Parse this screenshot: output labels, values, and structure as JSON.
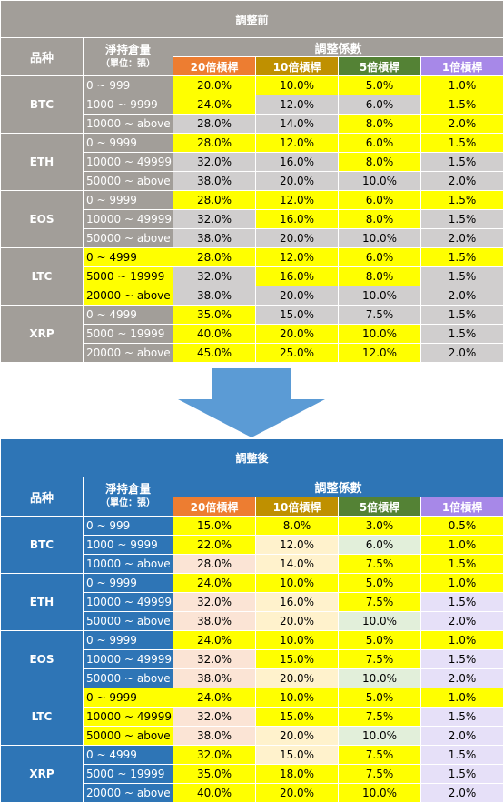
{
  "before": {
    "title": "調整前",
    "header": {
      "coin": "品种",
      "position": "淨持倉量",
      "unit": "（單位：張）",
      "factor": "調整係數"
    },
    "leverage_headers": [
      "20倍槓桿",
      "10倍槓桿",
      "5倍槓桿",
      "1倍槓桿"
    ],
    "coins": [
      {
        "name": "BTC",
        "rows": [
          {
            "range": "0 ~ 999",
            "values": [
              "20.0%",
              "10.0%",
              "5.0%",
              "1.0%"
            ]
          },
          {
            "range": "1000 ~ 9999",
            "values": [
              "24.0%",
              "12.0%",
              "6.0%",
              "1.5%"
            ]
          },
          {
            "range": "10000 ~ above",
            "values": [
              "28.0%",
              "14.0%",
              "8.0%",
              "2.0%"
            ]
          }
        ]
      },
      {
        "name": "ETH",
        "rows": [
          {
            "range": "0 ~ 9999",
            "values": [
              "28.0%",
              "12.0%",
              "6.0%",
              "1.5%"
            ]
          },
          {
            "range": "10000 ~ 49999",
            "values": [
              "32.0%",
              "16.0%",
              "8.0%",
              "1.5%"
            ]
          },
          {
            "range": "50000 ~ above",
            "values": [
              "38.0%",
              "20.0%",
              "10.0%",
              "2.0%"
            ]
          }
        ]
      },
      {
        "name": "EOS",
        "rows": [
          {
            "range": "0 ~ 9999",
            "values": [
              "28.0%",
              "12.0%",
              "6.0%",
              "1.5%"
            ]
          },
          {
            "range": "10000 ~ 49999",
            "values": [
              "32.0%",
              "16.0%",
              "8.0%",
              "1.5%"
            ]
          },
          {
            "range": "50000 ~ above",
            "values": [
              "38.0%",
              "20.0%",
              "10.0%",
              "2.0%"
            ]
          }
        ]
      },
      {
        "name": "LTC",
        "rows": [
          {
            "range": "0 ~ 4999",
            "values": [
              "28.0%",
              "12.0%",
              "6.0%",
              "1.5%"
            ]
          },
          {
            "range": "5000 ~ 19999",
            "values": [
              "32.0%",
              "16.0%",
              "8.0%",
              "1.5%"
            ]
          },
          {
            "range": "20000 ~ above",
            "values": [
              "38.0%",
              "20.0%",
              "10.0%",
              "2.0%"
            ]
          }
        ]
      },
      {
        "name": "XRP",
        "rows": [
          {
            "range": "0 ~ 4999",
            "values": [
              "35.0%",
              "15.0%",
              "7.5%",
              "1.5%"
            ]
          },
          {
            "range": "5000 ~ 19999",
            "values": [
              "40.0%",
              "20.0%",
              "10.0%",
              "1.5%"
            ]
          },
          {
            "range": "20000 ~ above",
            "values": [
              "45.0%",
              "25.0%",
              "12.0%",
              "2.0%"
            ]
          }
        ]
      }
    ]
  },
  "after": {
    "title": "調整後",
    "header": {
      "coin": "品种",
      "position": "淨持倉量",
      "unit": "（單位：張）",
      "factor": "調整係數"
    },
    "leverage_headers": [
      "20倍槓桿",
      "10倍槓桿",
      "5倍槓桿",
      "1倍槓桿"
    ],
    "coins": [
      {
        "name": "BTC",
        "rows": [
          {
            "range": "0 ~ 999",
            "values": [
              "15.0%",
              "8.0%",
              "3.0%",
              "0.5%"
            ]
          },
          {
            "range": "1000 ~ 9999",
            "values": [
              "22.0%",
              "12.0%",
              "6.0%",
              "1.0%"
            ]
          },
          {
            "range": "10000 ~ above",
            "values": [
              "28.0%",
              "14.0%",
              "7.5%",
              "1.5%"
            ]
          }
        ]
      },
      {
        "name": "ETH",
        "rows": [
          {
            "range": "0 ~ 9999",
            "values": [
              "24.0%",
              "10.0%",
              "5.0%",
              "1.0%"
            ]
          },
          {
            "range": "10000 ~ 49999",
            "values": [
              "32.0%",
              "16.0%",
              "7.5%",
              "1.5%"
            ]
          },
          {
            "range": "50000 ~ above",
            "values": [
              "38.0%",
              "20.0%",
              "10.0%",
              "2.0%"
            ]
          }
        ]
      },
      {
        "name": "EOS",
        "rows": [
          {
            "range": "0 ~ 9999",
            "values": [
              "24.0%",
              "10.0%",
              "5.0%",
              "1.0%"
            ]
          },
          {
            "range": "10000 ~ 49999",
            "values": [
              "32.0%",
              "15.0%",
              "7.5%",
              "1.5%"
            ]
          },
          {
            "range": "50000 ~ above",
            "values": [
              "38.0%",
              "20.0%",
              "10.0%",
              "2.0%"
            ]
          }
        ]
      },
      {
        "name": "LTC",
        "rows": [
          {
            "range": "0 ~ 9999",
            "values": [
              "24.0%",
              "10.0%",
              "5.0%",
              "1.0%"
            ]
          },
          {
            "range": "10000 ~ 49999",
            "values": [
              "32.0%",
              "15.0%",
              "7.5%",
              "1.5%"
            ]
          },
          {
            "range": "50000 ~ above",
            "values": [
              "38.0%",
              "20.0%",
              "10.0%",
              "2.0%"
            ]
          }
        ]
      },
      {
        "name": "XRP",
        "rows": [
          {
            "range": "0 ~ 4999",
            "values": [
              "32.0%",
              "15.0%",
              "7.5%",
              "1.5%"
            ]
          },
          {
            "range": "5000 ~ 19999",
            "values": [
              "35.0%",
              "18.0%",
              "7.5%",
              "1.5%"
            ]
          },
          {
            "range": "20000 ~ above",
            "values": [
              "40.0%",
              "20.0%",
              "10.0%",
              "2.0%"
            ]
          }
        ]
      }
    ]
  },
  "colors": {
    "before_header": "#a29e99",
    "after_header": "#2e75b6",
    "yellow": "#ffff00",
    "gray_cell": "#d0cece",
    "lev20": "#ed7d31",
    "lev10": "#bf9000",
    "lev5": "#548235",
    "lev1": "#a788e8",
    "after_lev20_light": "#fbe4d5",
    "after_lev10_light": "#fff2cc",
    "after_lev5_light": "#e2efda",
    "after_lev1_light": "#e6e0f8",
    "arrow": "#5b9bd5"
  }
}
